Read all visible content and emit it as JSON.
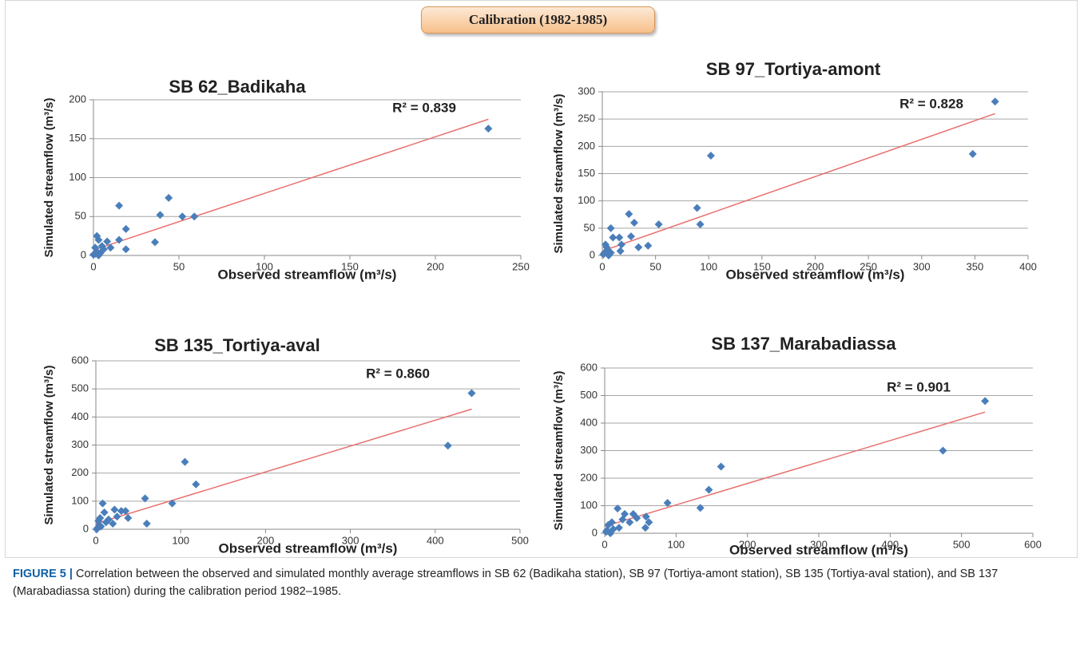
{
  "banner": "Calibration (1982-1985)",
  "chart_data": [
    {
      "type": "scatter",
      "title": "SB 62_Badikaha",
      "x_label": "Observed streamflow (m³/s)",
      "y_label": "Simulated streamflow (m³/s)",
      "annotation": "R² = 0.839",
      "x": [
        231,
        44,
        15,
        39,
        52,
        59,
        19,
        36,
        15,
        19,
        8,
        2,
        3,
        1,
        2,
        4,
        6,
        1,
        0,
        3,
        5,
        10
      ],
      "values": [
        163,
        74,
        64,
        52,
        50,
        50,
        34,
        17,
        20,
        8,
        18,
        25,
        20,
        10,
        5,
        3,
        8,
        2,
        1,
        0,
        12,
        10
      ],
      "color": "#4a7ebb",
      "trendline": {
        "x": [
          0,
          231
        ],
        "values": [
          7,
          175
        ],
        "color": "#e8706e"
      },
      "xlim": [
        0,
        250
      ],
      "xticks": [
        0,
        50,
        100,
        150,
        200,
        250
      ],
      "ylim": [
        0,
        200
      ],
      "yticks": [
        0,
        50,
        100,
        150,
        200
      ],
      "grid": true
    },
    {
      "type": "scatter",
      "title": "SB 97_Tortiya-amont",
      "x_label": "Observed streamflow (m³/s)",
      "y_label": "Simulated streamflow (m³/s)",
      "annotation": "R² = 0.828",
      "x": [
        369,
        348,
        102,
        89,
        92,
        25,
        53,
        30,
        27,
        16,
        8,
        10,
        18,
        34,
        43,
        17,
        3,
        5,
        2,
        1,
        6,
        8,
        4
      ],
      "values": [
        282,
        186,
        183,
        87,
        57,
        76,
        57,
        60,
        35,
        33,
        50,
        33,
        20,
        15,
        18,
        8,
        20,
        10,
        5,
        2,
        0,
        5,
        15
      ],
      "color": "#4a7ebb",
      "trendline": {
        "x": [
          0,
          369
        ],
        "values": [
          8,
          260
        ],
        "color": "#e8706e"
      },
      "xlim": [
        0,
        400
      ],
      "xticks": [
        0,
        50,
        100,
        150,
        200,
        250,
        300,
        350,
        400
      ],
      "ylim": [
        0,
        300
      ],
      "yticks": [
        0,
        50,
        100,
        150,
        200,
        250,
        300
      ],
      "grid": true
    },
    {
      "type": "scatter",
      "title": "SB 135_Tortiya-aval",
      "x_label": "Observed streamflow (m³/s)",
      "y_label": "Simulated streamflow (m³/s)",
      "annotation": "R² = 0.860",
      "x": [
        443,
        415,
        105,
        118,
        58,
        90,
        60,
        8,
        22,
        30,
        35,
        10,
        38,
        25,
        20,
        5,
        3,
        12,
        6,
        2,
        1,
        4,
        15
      ],
      "values": [
        485,
        298,
        240,
        160,
        110,
        92,
        20,
        92,
        70,
        65,
        65,
        60,
        40,
        45,
        20,
        40,
        30,
        25,
        10,
        5,
        0,
        15,
        35
      ],
      "color": "#4a7ebb",
      "trendline": {
        "x": [
          0,
          443
        ],
        "values": [
          20,
          428
        ],
        "color": "#e8706e"
      },
      "xlim": [
        0,
        500
      ],
      "xticks": [
        0,
        100,
        200,
        300,
        400,
        500
      ],
      "ylim": [
        0,
        600
      ],
      "yticks": [
        0,
        100,
        200,
        300,
        400,
        500,
        600
      ],
      "grid": true
    },
    {
      "type": "scatter",
      "title": "SB 137_Marabadiassa",
      "x_label": "Observed streamflow (m³/s)",
      "y_label": "Simulated streamflow (m³/s)",
      "annotation": "R² = 0.901",
      "x": [
        533,
        474,
        163,
        146,
        88,
        134,
        18,
        58,
        62,
        57,
        40,
        28,
        35,
        25,
        20,
        10,
        5,
        3,
        2,
        12,
        8,
        45
      ],
      "values": [
        480,
        300,
        242,
        158,
        110,
        92,
        90,
        60,
        40,
        20,
        70,
        70,
        40,
        50,
        20,
        40,
        30,
        10,
        5,
        15,
        0,
        55
      ],
      "color": "#4a7ebb",
      "trendline": {
        "x": [
          0,
          533
        ],
        "values": [
          25,
          440
        ],
        "color": "#e8706e"
      },
      "xlim": [
        0,
        600
      ],
      "xticks": [
        0,
        100,
        200,
        300,
        400,
        500,
        600
      ],
      "ylim": [
        0,
        600
      ],
      "yticks": [
        0,
        100,
        200,
        300,
        400,
        500,
        600
      ],
      "grid": true
    }
  ],
  "caption": {
    "label": "FIGURE 5 |",
    "text": "Correlation between the observed and simulated monthly average streamflows in SB 62 (Badikaha station), SB 97 (Tortiya-amont station), SB 135 (Tortiya-aval station), and SB 137 (Marabadiassa station) during the calibration period 1982–1985."
  }
}
